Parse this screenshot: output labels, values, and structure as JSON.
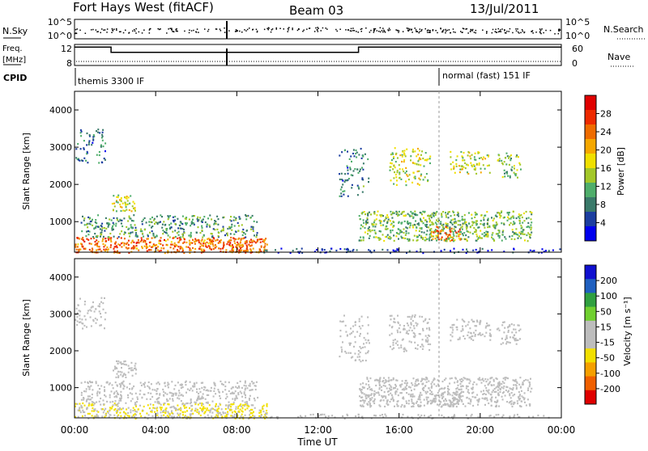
{
  "header": {
    "station": "Fort Hays West (fitACF)",
    "beam": "Beam 03",
    "date": "13/Jul/2011"
  },
  "top_panel": {
    "left_label": "N.Sky",
    "right_label": "N.Search",
    "left_ticks": [
      "10^5",
      "10^0"
    ],
    "right_ticks": [
      "10^5",
      "10^0"
    ]
  },
  "freq_panel": {
    "left_label_1": "Freq.",
    "left_label_2": "[MHz]",
    "right_label": "Nave",
    "left_ticks": [
      "12",
      "8"
    ],
    "right_ticks": [
      "60",
      "0"
    ]
  },
  "cpid": {
    "label": "CPID",
    "segments": [
      {
        "text": "themis 3300 IF"
      },
      {
        "text": "normal (fast) 151 IF"
      }
    ]
  },
  "x_axis": {
    "label": "Time UT",
    "ticks": [
      "00:00",
      "04:00",
      "08:00",
      "12:00",
      "16:00",
      "20:00",
      "00:00"
    ]
  },
  "panels": {
    "power": {
      "ylabel": "Slant Range [km]",
      "yticks": [
        "4000",
        "3000",
        "2000",
        "1000"
      ],
      "colorbar_label": "Power [dB]",
      "colorbar_ticks": [
        "28",
        "24",
        "20",
        "16",
        "12",
        "8",
        "4"
      ],
      "colors": [
        "#0000ee",
        "#1c3ea0",
        "#3a7a6a",
        "#4fae6b",
        "#a3c829",
        "#f0e000",
        "#f6a800",
        "#ef6c00",
        "#ee2a00",
        "#e00000"
      ]
    },
    "velocity": {
      "ylabel": "Slant Range [km]",
      "yticks": [
        "4000",
        "3000",
        "2000",
        "1000"
      ],
      "colorbar_label": "Velocity [m s⁻¹]",
      "colorbar_ticks": [
        "200",
        "100",
        "50",
        "15",
        "-15",
        "-50",
        "-100",
        "-200"
      ],
      "colors": [
        "#1010d0",
        "#2060c0",
        "#30a040",
        "#70d030",
        "#bdbdbd",
        "#bdbdbd",
        "#f2e000",
        "#f5a000",
        "#f06000",
        "#e00000"
      ]
    }
  },
  "chart_data": {
    "type": "heatmap",
    "x_units": "hours UT",
    "x_range": [
      0,
      24
    ],
    "y_units": "km",
    "y_range": [
      180,
      4500
    ],
    "scatter_regions": [
      {
        "t": [
          0.0,
          9.5
        ],
        "r": [
          180,
          600
        ],
        "power": 24,
        "velocity": -50,
        "density": 0.9
      },
      {
        "t": [
          0.3,
          9.0
        ],
        "r": [
          600,
          1200
        ],
        "power": 10,
        "velocity": 0,
        "density": 0.55
      },
      {
        "t": [
          1.8,
          3.0
        ],
        "r": [
          1300,
          1750
        ],
        "power": 16,
        "velocity": 0,
        "density": 0.7
      },
      {
        "t": [
          0.0,
          1.5
        ],
        "r": [
          2600,
          3500
        ],
        "power": 8,
        "velocity": 0,
        "density": 0.35
      },
      {
        "t": [
          14.0,
          22.5
        ],
        "r": [
          500,
          1300
        ],
        "power": 12,
        "velocity": 0,
        "density": 0.75
      },
      {
        "t": [
          17.5,
          19.0
        ],
        "r": [
          500,
          900
        ],
        "power": 24,
        "velocity": 0,
        "density": 0.6
      },
      {
        "t": [
          15.5,
          17.5
        ],
        "r": [
          2000,
          3000
        ],
        "power": 16,
        "velocity": 0,
        "density": 0.45
      },
      {
        "t": [
          18.5,
          20.5
        ],
        "r": [
          2300,
          2900
        ],
        "power": 16,
        "velocity": 0,
        "density": 0.5
      },
      {
        "t": [
          20.8,
          22.0
        ],
        "r": [
          2200,
          2900
        ],
        "power": 12,
        "velocity": 0,
        "density": 0.45
      },
      {
        "t": [
          13.0,
          14.5
        ],
        "r": [
          1700,
          3000
        ],
        "power": 8,
        "velocity": 0,
        "density": 0.3
      },
      {
        "t": [
          9.0,
          24.0
        ],
        "r": [
          180,
          300
        ],
        "power": 4,
        "velocity": 15,
        "density": 0.4
      }
    ],
    "frequency_mhz": [
      {
        "t": [
          0.0,
          1.8
        ],
        "value": 11.5
      },
      {
        "t": [
          1.8,
          14.0
        ],
        "value": 10.5
      },
      {
        "t": [
          14.0,
          24.0
        ],
        "value": 11.5
      }
    ],
    "cpid_change_hour": 18.0
  }
}
